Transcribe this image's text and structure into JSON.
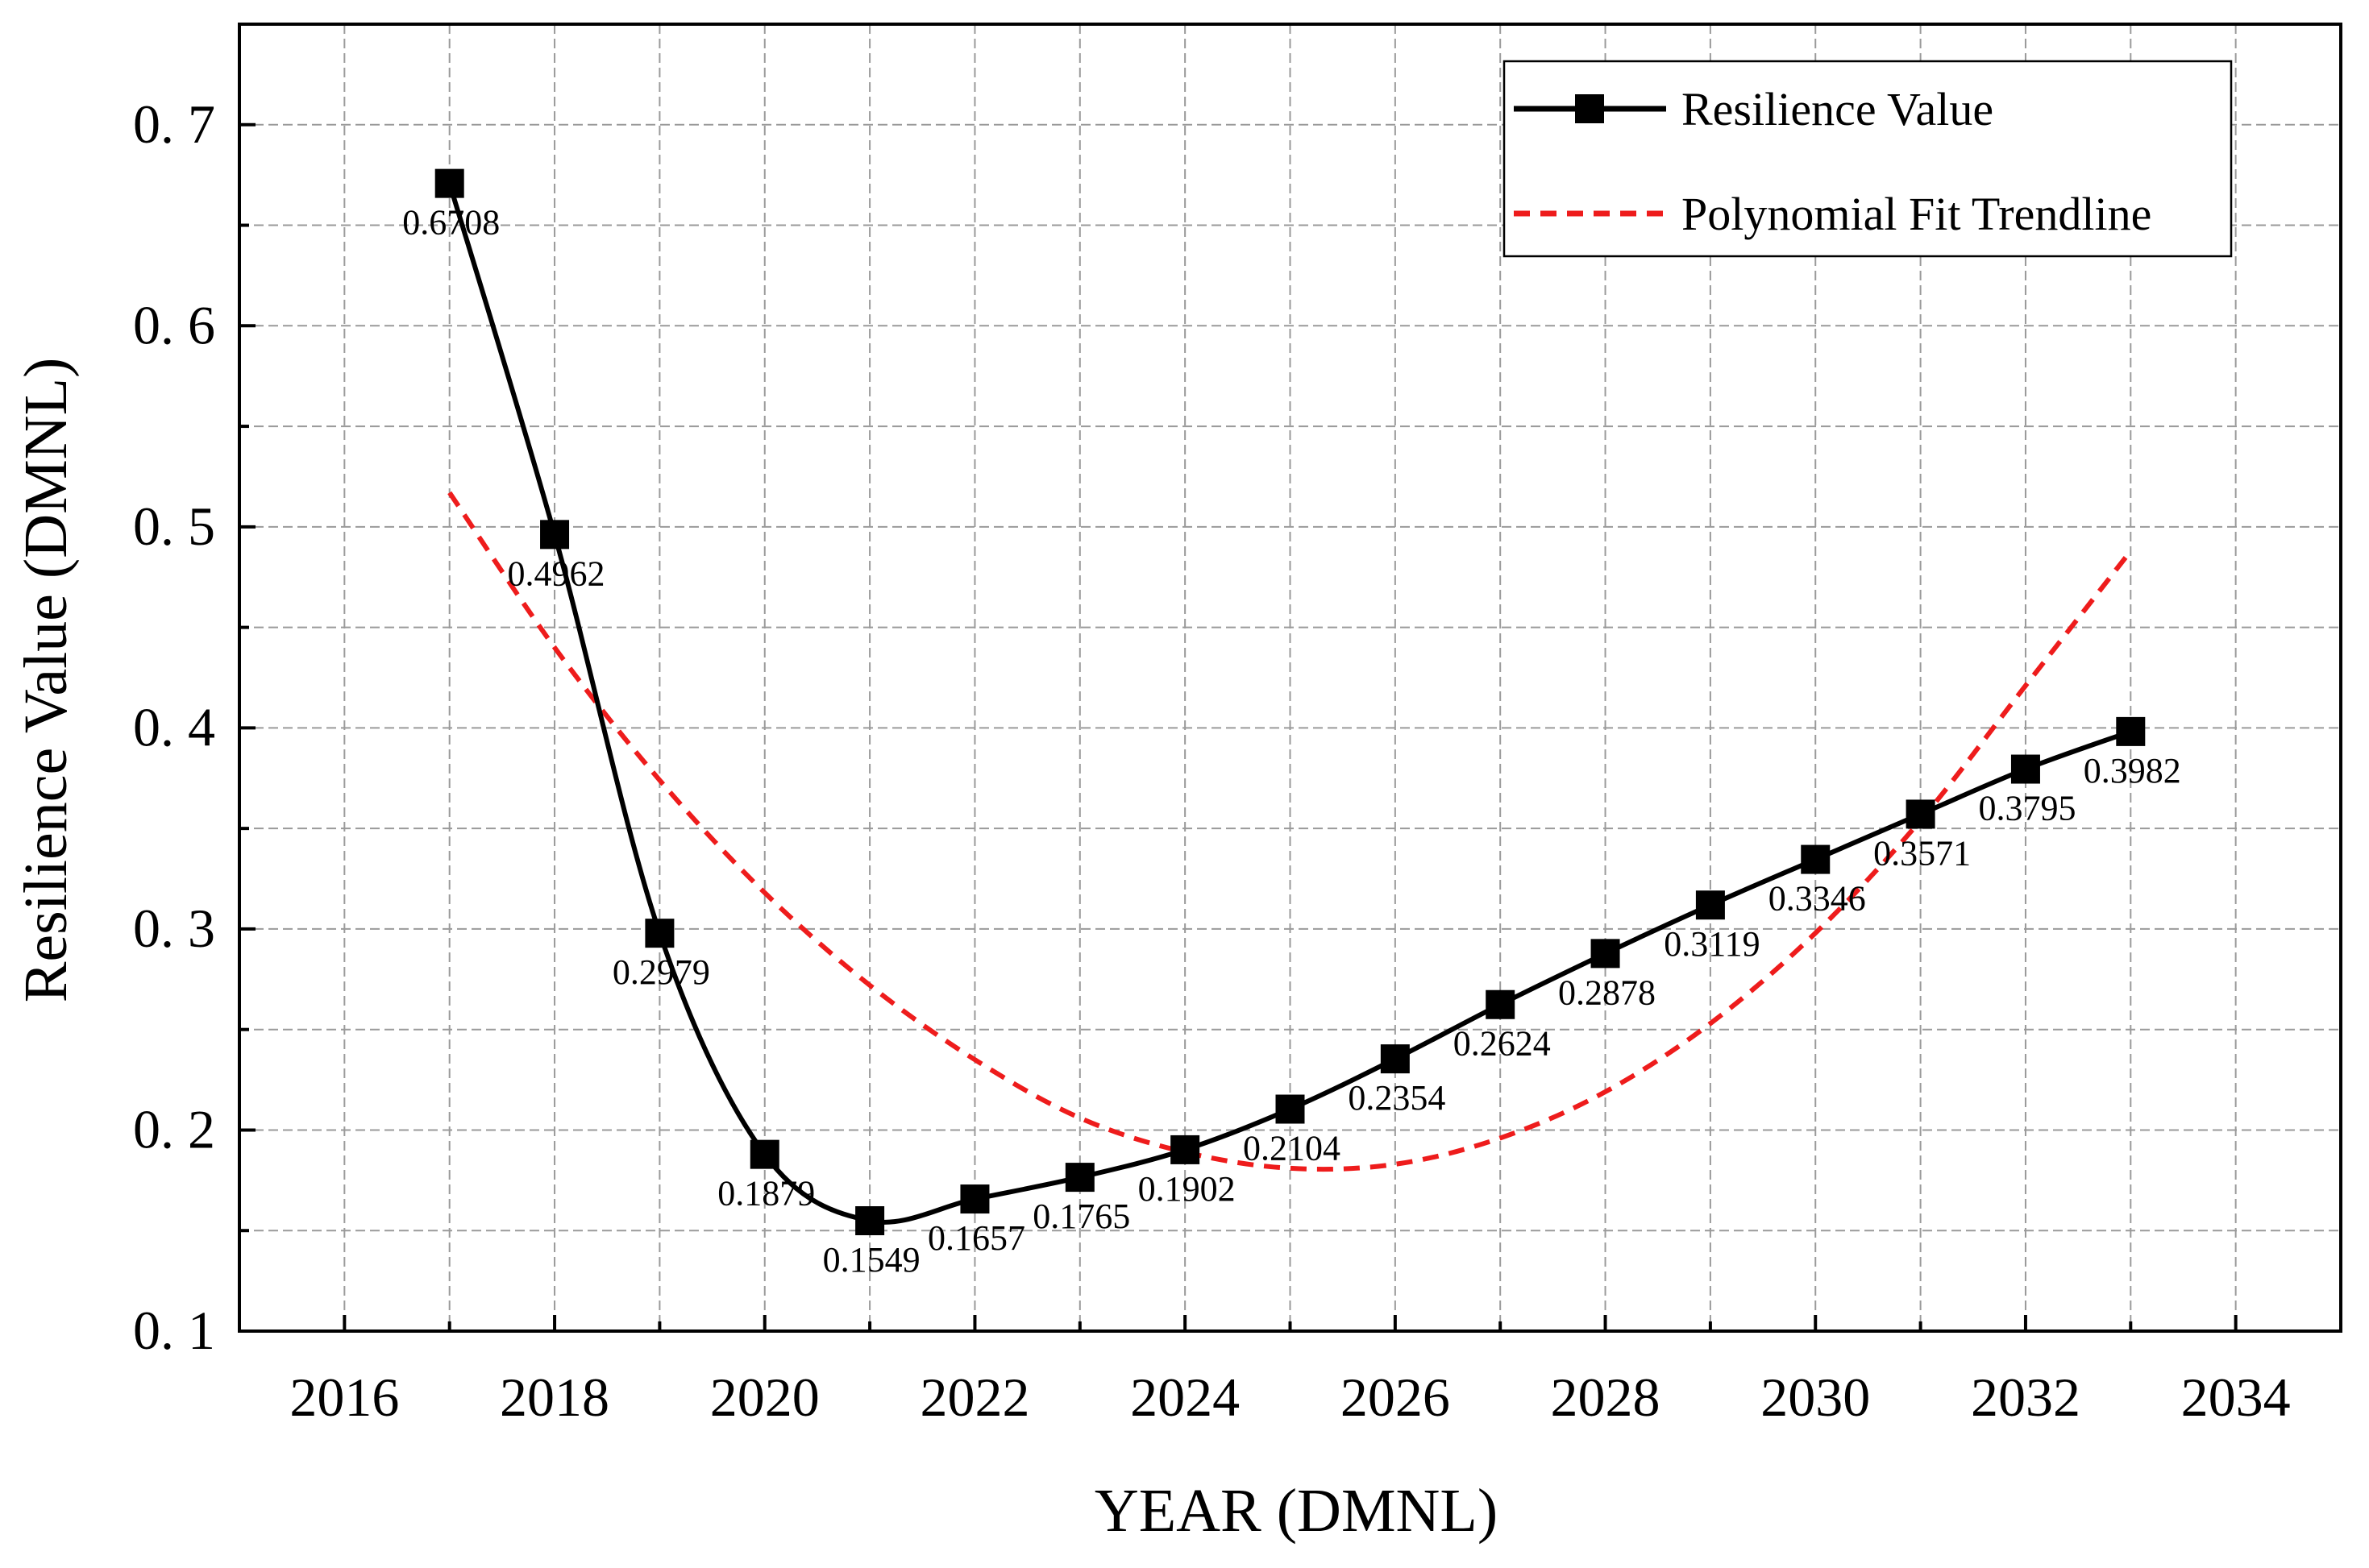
{
  "chart_data": {
    "type": "line",
    "xlabel": "YEAR (DMNL)",
    "ylabel": "Resilience Value (DMNL)",
    "xlim": [
      2015,
      2035
    ],
    "ylim": [
      0.1,
      0.75
    ],
    "x_ticks": [
      "2016",
      "2018",
      "2020",
      "2022",
      "2024",
      "2026",
      "2028",
      "2030",
      "2032",
      "2034"
    ],
    "y_ticks": [
      "0. 1",
      "0. 2",
      "0. 3",
      "0. 4",
      "0. 5",
      "0. 6",
      "0. 7"
    ],
    "grid": true,
    "legend_position": "top-right",
    "series": [
      {
        "name": "Resilience Value",
        "style": "solid-square-markers",
        "color": "#000000",
        "x": [
          2017,
          2018,
          2019,
          2020,
          2021,
          2022,
          2023,
          2024,
          2025,
          2026,
          2027,
          2028,
          2029,
          2030,
          2031,
          2032,
          2033
        ],
        "values": [
          0.6708,
          0.4962,
          0.2979,
          0.1879,
          0.1549,
          0.1657,
          0.1765,
          0.1902,
          0.2104,
          0.2354,
          0.2624,
          0.2878,
          0.3119,
          0.3346,
          0.3571,
          0.3795,
          0.3982
        ],
        "labels": [
          "0.6708",
          "0.4962",
          "0.2979",
          "0.1879",
          "0.1549",
          "0.1657",
          "0.1765",
          "0.1902",
          "0.2104",
          "0.2354",
          "0.2624",
          "0.2878",
          "0.3119",
          "0.3346",
          "0.3571",
          "0.3795",
          "0.3982"
        ]
      },
      {
        "name": "Polynomial Fit Trendline",
        "style": "dashed",
        "color": "#ee1c1c",
        "x": [
          2017,
          2018,
          2019,
          2020,
          2021,
          2022,
          2023,
          2024,
          2025,
          2026,
          2027,
          2028,
          2029,
          2030,
          2031,
          2032,
          2033
        ],
        "values": [
          0.517,
          0.44,
          0.374,
          0.318,
          0.272,
          0.235,
          0.206,
          0.189,
          0.181,
          0.183,
          0.196,
          0.219,
          0.253,
          0.298,
          0.354,
          0.421,
          0.488
        ]
      }
    ]
  }
}
